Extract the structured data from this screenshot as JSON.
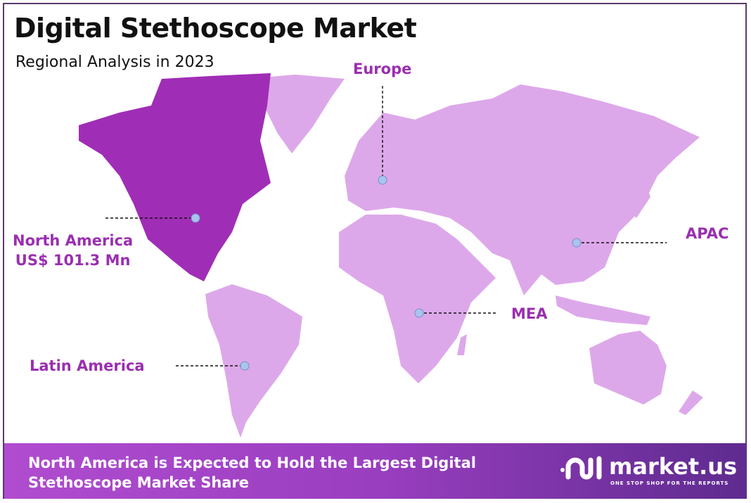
{
  "title": "Digital Stethoscope Market",
  "subtitle": "Regional Analysis in 2023",
  "colors": {
    "highlight_region": "#a02db6",
    "other_regions": "#dda8ea",
    "label": "#9a2fb0",
    "marker": "#a9c4ef"
  },
  "regions": [
    {
      "name": "North America",
      "value": "US$ 101.3 Mn",
      "highlighted": true
    },
    {
      "name": "Europe",
      "highlighted": false
    },
    {
      "name": "APAC",
      "highlighted": false
    },
    {
      "name": "MEA",
      "highlighted": false
    },
    {
      "name": "Latin America",
      "highlighted": false
    }
  ],
  "footer": {
    "line1": "North America is Expected to Hold the Largest Digital",
    "line2": "Stethoscope  Market Share"
  },
  "logo": {
    "word": "market.us",
    "tagline": "ONE STOP SHOP FOR THE REPORTS"
  }
}
